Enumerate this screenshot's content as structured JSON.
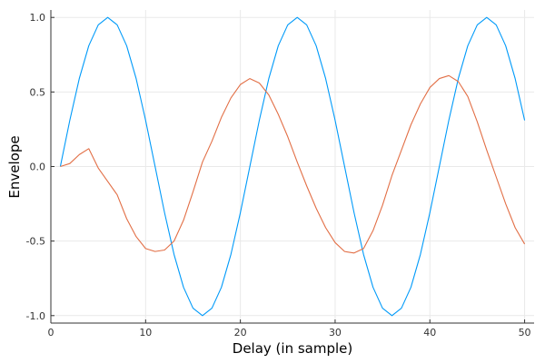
{
  "chart_data": {
    "type": "line",
    "title": "",
    "xlabel": "Delay (in sample)",
    "ylabel": "Envelope",
    "xlim": [
      0,
      51
    ],
    "ylim": [
      -1.05,
      1.05
    ],
    "xticks": [
      0,
      10,
      20,
      30,
      40,
      50
    ],
    "xtick_labels": [
      "0",
      "10",
      "20",
      "30",
      "40",
      "50"
    ],
    "yticks": [
      -1.0,
      -0.5,
      0.0,
      0.5,
      1.0
    ],
    "ytick_labels": [
      "-1.0",
      "-0.5",
      "0.0",
      "0.5",
      "1.0"
    ],
    "grid": true,
    "legend": "none",
    "x": [
      1,
      2,
      3,
      4,
      5,
      6,
      7,
      8,
      9,
      10,
      11,
      12,
      13,
      14,
      15,
      16,
      17,
      18,
      19,
      20,
      21,
      22,
      23,
      24,
      25,
      26,
      27,
      28,
      29,
      30,
      31,
      32,
      33,
      34,
      35,
      36,
      37,
      38,
      39,
      40,
      41,
      42,
      43,
      44,
      45,
      46,
      47,
      48,
      49,
      50
    ],
    "series": [
      {
        "color": "#009af9",
        "values": [
          0.0,
          0.31,
          0.59,
          0.81,
          0.95,
          1.0,
          0.95,
          0.81,
          0.59,
          0.31,
          0.0,
          -0.31,
          -0.59,
          -0.81,
          -0.95,
          -1.0,
          -0.95,
          -0.81,
          -0.59,
          -0.31,
          0.0,
          0.31,
          0.59,
          0.81,
          0.95,
          1.0,
          0.95,
          0.81,
          0.59,
          0.31,
          0.0,
          -0.31,
          -0.59,
          -0.81,
          -0.95,
          -1.0,
          -0.95,
          -0.81,
          -0.59,
          -0.31,
          0.0,
          0.31,
          0.59,
          0.81,
          0.95,
          1.0,
          0.95,
          0.81,
          0.59,
          0.31
        ]
      },
      {
        "color": "#e26f46",
        "values": [
          0.0,
          0.02,
          0.08,
          0.12,
          -0.01,
          -0.1,
          -0.19,
          -0.35,
          -0.47,
          -0.55,
          -0.57,
          -0.56,
          -0.5,
          -0.36,
          -0.17,
          0.03,
          0.17,
          0.33,
          0.46,
          0.55,
          0.59,
          0.56,
          0.48,
          0.35,
          0.2,
          0.03,
          -0.13,
          -0.28,
          -0.41,
          -0.51,
          -0.57,
          -0.58,
          -0.55,
          -0.43,
          -0.26,
          -0.06,
          0.11,
          0.28,
          0.42,
          0.53,
          0.59,
          0.61,
          0.57,
          0.47,
          0.3,
          0.11,
          -0.07,
          -0.25,
          -0.41,
          -0.52
        ]
      }
    ]
  }
}
